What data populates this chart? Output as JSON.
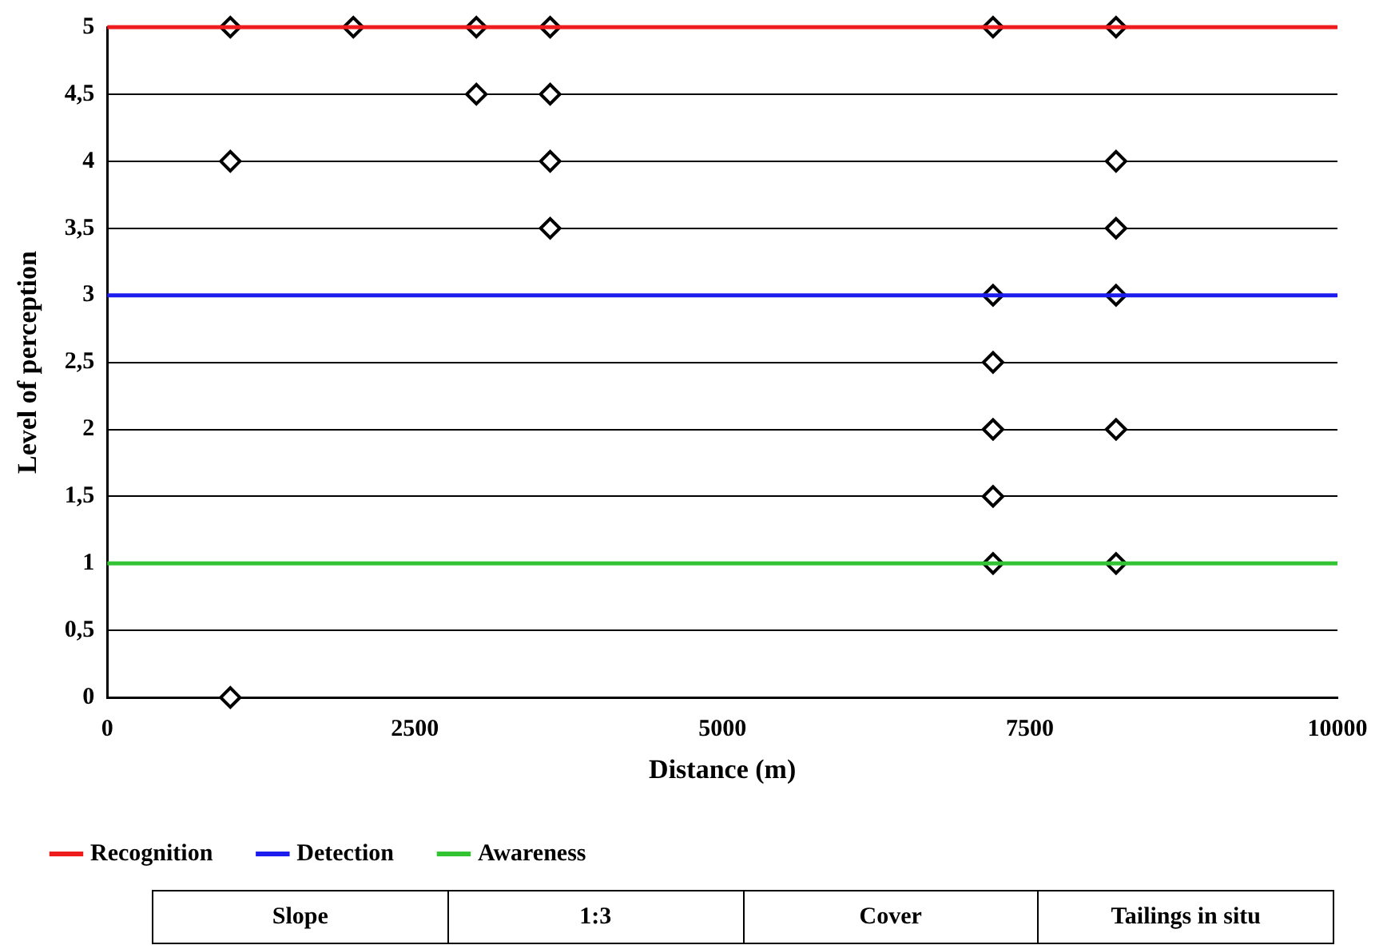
{
  "chart_data": {
    "type": "scatter",
    "xlabel": "Distance (m)",
    "ylabel": "Level of perception",
    "xlim": [
      0,
      10000
    ],
    "xticks": [
      0,
      2500,
      5000,
      7500,
      10000
    ],
    "ylim": [
      0,
      5
    ],
    "yticks": [
      0,
      {
        "value": 0.5,
        "label": "0,5"
      },
      1,
      {
        "value": 1.5,
        "label": "1,5"
      },
      2,
      {
        "value": 2.5,
        "label": "2,5"
      },
      3,
      {
        "value": 3.5,
        "label": "3,5"
      },
      4,
      {
        "value": 4.5,
        "label": "4,5"
      },
      5
    ],
    "grid": "y",
    "legend": "bottom",
    "series": [
      {
        "name": "Recognition",
        "type": "line",
        "marker": "none",
        "color": "#ee1c1c",
        "x": [
          0,
          10000
        ],
        "values": [
          5,
          5
        ]
      },
      {
        "name": "Detection",
        "type": "line",
        "marker": "none",
        "color": "#1c1cee",
        "x": [
          0,
          10000
        ],
        "values": [
          3,
          3
        ]
      },
      {
        "name": "Awareness",
        "type": "line",
        "marker": "none",
        "color": "#33c433",
        "x": [
          0,
          10000
        ],
        "values": [
          1,
          1
        ]
      },
      {
        "marker": "diamond",
        "color": "#000000",
        "x": [
          1000,
          2000,
          3000,
          3600,
          7200,
          8200,
          3000,
          3600,
          1000,
          3600,
          8200,
          3600,
          8200,
          7200,
          8200,
          7200,
          7200,
          8200,
          7200,
          7200,
          8200,
          1000
        ],
        "values": [
          5,
          5,
          5,
          5,
          5,
          5,
          4.5,
          4.5,
          4,
          4,
          4,
          3.5,
          3.5,
          3,
          3,
          2.5,
          2,
          2,
          1.5,
          1,
          1,
          0
        ]
      }
    ],
    "annotations": [
      "Slope",
      "1:3",
      "Cover",
      "Tailings in situ"
    ]
  }
}
